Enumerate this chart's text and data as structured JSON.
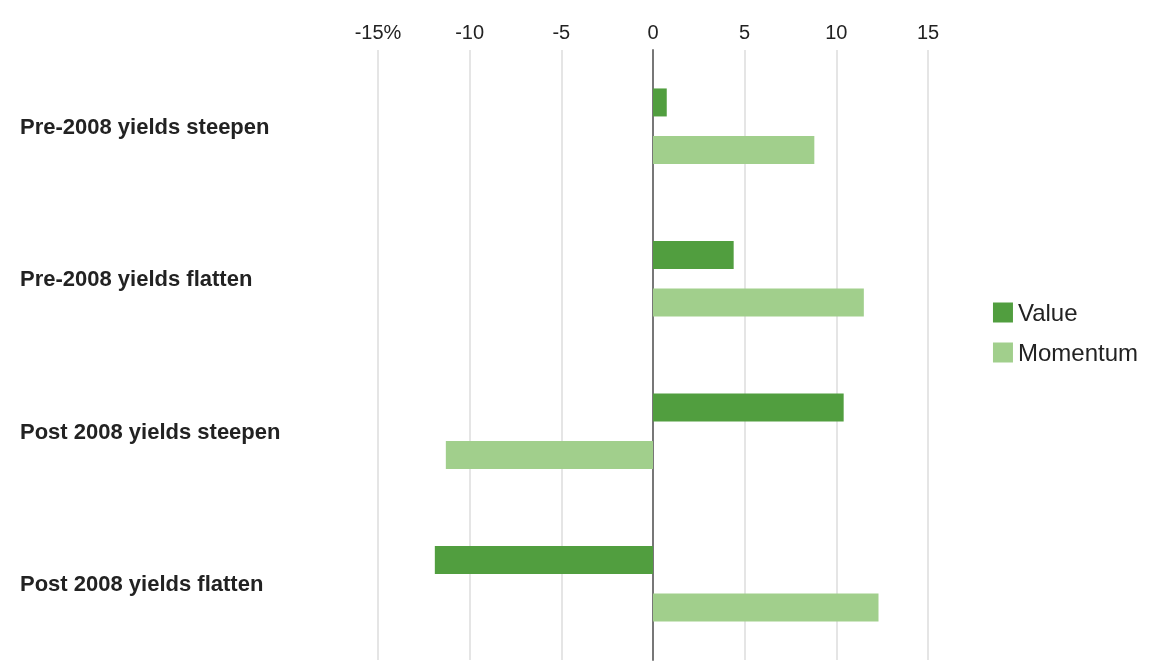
{
  "chart_data": {
    "type": "bar",
    "orientation": "horizontal",
    "categories": [
      "Pre-2008 yields steepen",
      "Pre-2008 yields flatten",
      "Post 2008 yields steepen",
      "Post 2008 yields flatten"
    ],
    "series": [
      {
        "name": "Value",
        "color": "#519e3f",
        "values": [
          0.75,
          4.4,
          10.4,
          -11.9
        ]
      },
      {
        "name": "Momentum",
        "color": "#a1cf8c",
        "values": [
          8.8,
          11.5,
          -11.3,
          12.3
        ]
      }
    ],
    "xlim": [
      -15,
      15
    ],
    "xticks": [
      {
        "value": -15,
        "label": "-15%"
      },
      -10,
      -5,
      0,
      5,
      10,
      15
    ],
    "grid": "x",
    "legend": "right"
  }
}
